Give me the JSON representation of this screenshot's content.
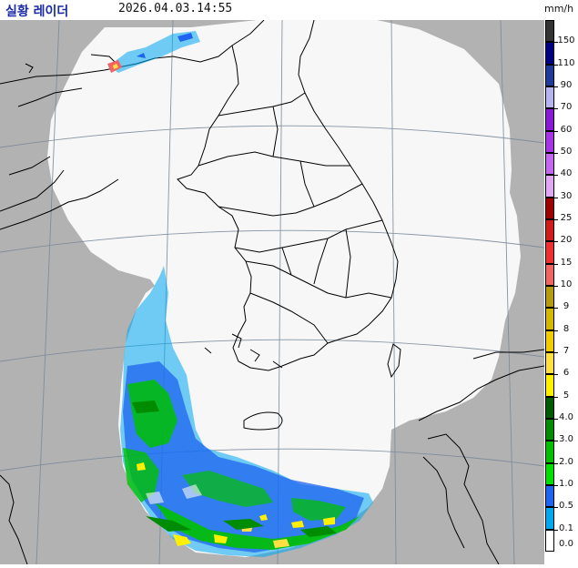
{
  "header": {
    "title": "실황 레이더",
    "timestamp": "2026.04.03.14:55",
    "unit": "mm/h"
  },
  "legend": {
    "items": [
      {
        "label": "150",
        "color": "#333333"
      },
      {
        "label": "110",
        "color": "#000080"
      },
      {
        "label": "90",
        "color": "#1e3a9a"
      },
      {
        "label": "70",
        "color": "#b6b3f0"
      },
      {
        "label": "60",
        "color": "#8a18d8"
      },
      {
        "label": "50",
        "color": "#a633e6"
      },
      {
        "label": "40",
        "color": "#c466f0"
      },
      {
        "label": "30",
        "color": "#e0a8f2"
      },
      {
        "label": "25",
        "color": "#a00000"
      },
      {
        "label": "20",
        "color": "#d21c1c"
      },
      {
        "label": "15",
        "color": "#f03030"
      },
      {
        "label": "10",
        "color": "#f06464"
      },
      {
        "label": "9",
        "color": "#b49b10"
      },
      {
        "label": "8",
        "color": "#d4b800"
      },
      {
        "label": "7",
        "color": "#f0cc00"
      },
      {
        "label": "6",
        "color": "#ffe040"
      },
      {
        "label": "5",
        "color": "#fff000"
      },
      {
        "label": "4.0",
        "color": "#005a00"
      },
      {
        "label": "3.0",
        "color": "#008c00"
      },
      {
        "label": "2.0",
        "color": "#00c000"
      },
      {
        "label": "1.0",
        "color": "#00e000"
      },
      {
        "label": "0.5",
        "color": "#1e64f0"
      },
      {
        "label": "0.1",
        "color": "#00a8f0"
      },
      {
        "label": "0.0",
        "color": "#ffffff"
      }
    ]
  },
  "map": {
    "out_of_range_color": "#b2b2b2",
    "coverage_color": "#f7f7f7",
    "coastline_color": "#000000",
    "grid_color": "#7a8a9a"
  }
}
